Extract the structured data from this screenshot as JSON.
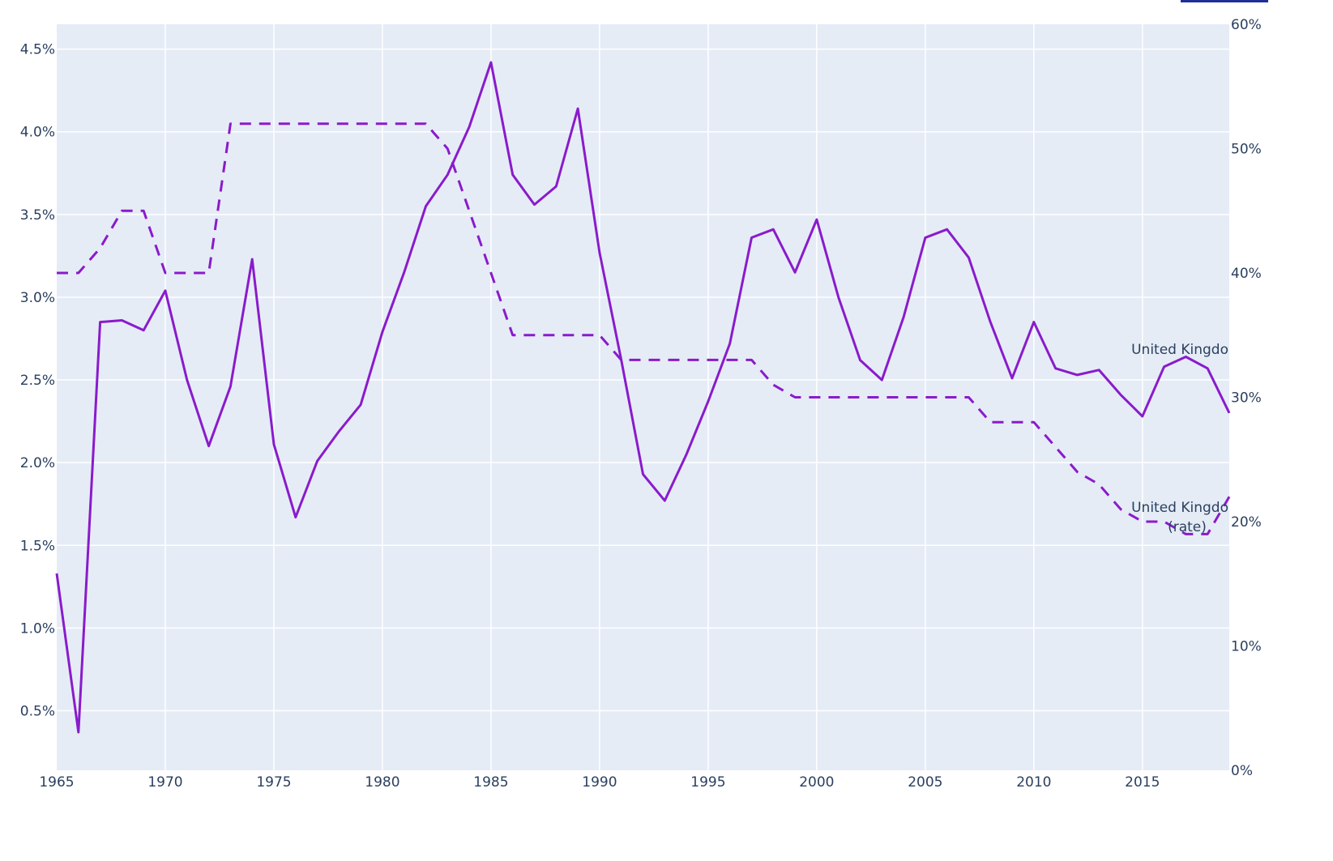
{
  "chart_data": {
    "type": "line",
    "title": "",
    "xlabel": "",
    "ylabel": "",
    "x": [
      1965,
      1966,
      1967,
      1968,
      1969,
      1970,
      1971,
      1972,
      1973,
      1974,
      1975,
      1976,
      1977,
      1978,
      1979,
      1980,
      1981,
      1982,
      1983,
      1984,
      1985,
      1986,
      1987,
      1988,
      1989,
      1990,
      1991,
      1992,
      1993,
      1994,
      1995,
      1996,
      1997,
      1998,
      1999,
      2000,
      2001,
      2002,
      2003,
      2004,
      2005,
      2006,
      2007,
      2008,
      2009,
      2010,
      2011,
      2012,
      2013,
      2014,
      2015,
      2016,
      2017,
      2018,
      2019
    ],
    "xlim": [
      1965,
      2019
    ],
    "x_ticks": [
      "1965",
      "1970",
      "1975",
      "1980",
      "1985",
      "1990",
      "1995",
      "2000",
      "2005",
      "2010",
      "2015"
    ],
    "y_left": {
      "range": [
        0.14,
        4.65
      ],
      "ticks": [
        "0.5%",
        "1.0%",
        "1.5%",
        "2.0%",
        "2.5%",
        "3.0%",
        "3.5%",
        "4.0%",
        "4.5%"
      ],
      "tick_values": [
        0.5,
        1,
        1.5,
        2,
        2.5,
        3,
        3.5,
        4,
        4.5
      ]
    },
    "y_right": {
      "range": [
        0,
        60
      ],
      "ticks": [
        "0%",
        "10%",
        "20%",
        "30%",
        "40%",
        "50%",
        "60%"
      ],
      "tick_values": [
        0,
        10,
        20,
        30,
        40,
        50,
        60
      ]
    },
    "grid": true,
    "background": "#E5ECF6",
    "series": [
      {
        "label": "United Kingdo",
        "axis": "left",
        "dash": "solid",
        "color": "#8A1BCB",
        "values": [
          1.33,
          0.37,
          2.85,
          2.86,
          2.8,
          3.04,
          2.5,
          2.1,
          2.46,
          3.23,
          2.11,
          1.67,
          2.01,
          2.19,
          2.35,
          2.79,
          3.15,
          3.55,
          3.74,
          4.03,
          4.42,
          3.74,
          3.56,
          3.67,
          4.14,
          3.27,
          2.62,
          1.93,
          1.77,
          2.05,
          2.37,
          2.72,
          3.36,
          3.41,
          3.15,
          3.47,
          3.0,
          2.62,
          2.5,
          2.88,
          3.36,
          3.41,
          3.24,
          2.85,
          2.51,
          2.85,
          2.57,
          2.53,
          2.56,
          2.41,
          2.28,
          2.58,
          2.64,
          2.57,
          2.3
        ]
      },
      {
        "label": "United Kingdo",
        "label2": "(rate)",
        "axis": "right",
        "dash": "dashed",
        "color": "#8A1BCB",
        "values": [
          40,
          40,
          42,
          45,
          45,
          40,
          40,
          40,
          52,
          52,
          52,
          52,
          52,
          52,
          52,
          52,
          52,
          52,
          50,
          45,
          40,
          35,
          35,
          35,
          35,
          35,
          33,
          33,
          33,
          33,
          33,
          33,
          33,
          31,
          30,
          30,
          30,
          30,
          30,
          30,
          30,
          30,
          30,
          28,
          28,
          28,
          26,
          24,
          23,
          21,
          20,
          20,
          19,
          19,
          22
        ]
      }
    ]
  }
}
